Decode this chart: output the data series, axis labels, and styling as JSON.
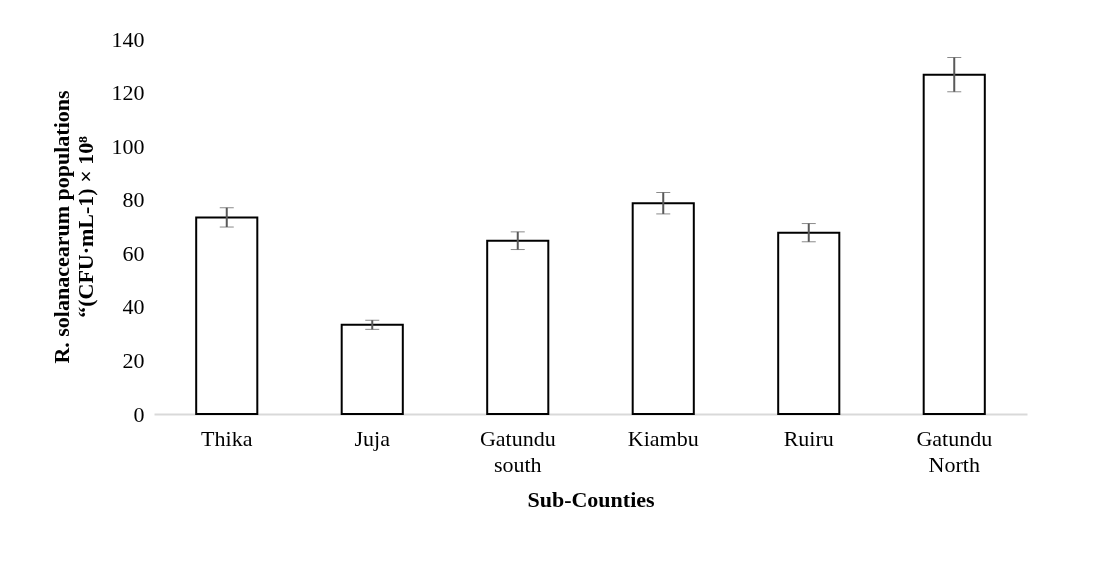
{
  "chart_data": {
    "type": "bar",
    "xlabel": "Sub-Counties",
    "ylabel": "R. solanacearum populations\n“(CFU·mL-1) × 10⁸",
    "categories": [
      "Thika",
      "Juja",
      "Gatundu south",
      "Kiambu",
      "Ruiru",
      "Gatundu North"
    ],
    "values": [
      73.4,
      33.3,
      64.7,
      78.7,
      67.7,
      126.7
    ],
    "errors": [
      3.6,
      1.7,
      3.3,
      4,
      3.4,
      6.4
    ],
    "color": "#ffffff",
    "ylim": [
      0,
      140
    ],
    "yticks": [
      0,
      20,
      40,
      60,
      80,
      100,
      120,
      140
    ]
  }
}
